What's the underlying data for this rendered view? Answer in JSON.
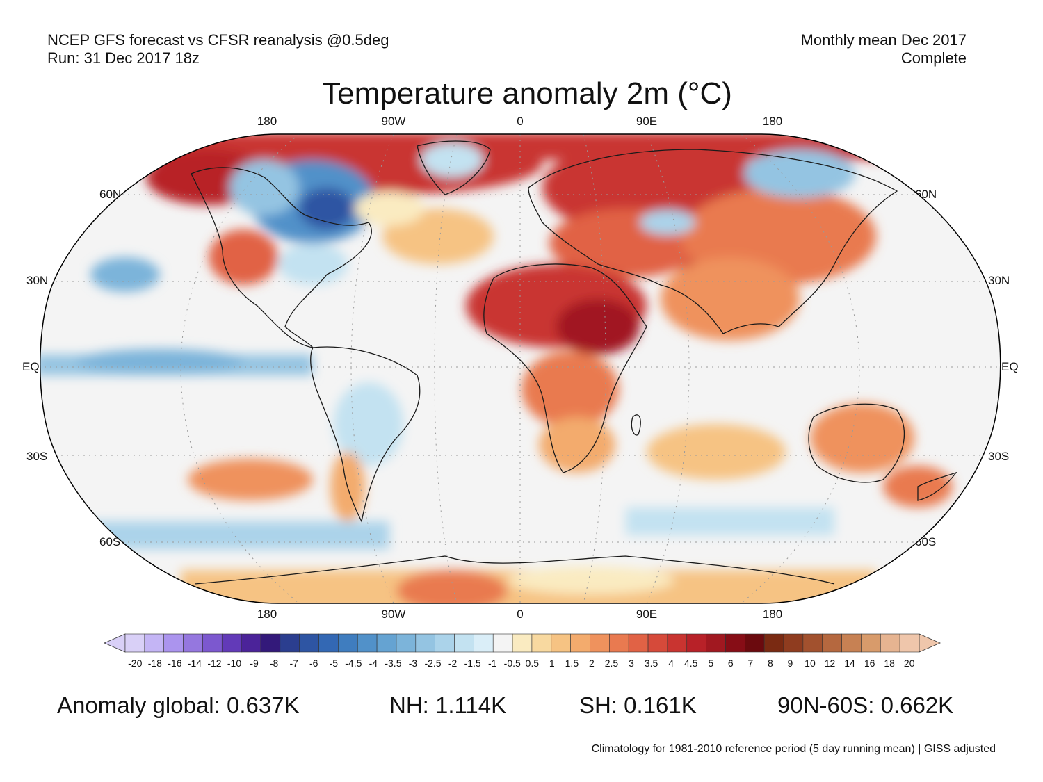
{
  "header": {
    "left_line1": "NCEP GFS forecast vs CFSR reanalysis @0.5deg",
    "left_line2": "Run: 31 Dec 2017 18z",
    "right_line1": "Monthly mean Dec 2017",
    "right_line2": "Complete"
  },
  "title": "Temperature anomaly 2m (°C)",
  "map": {
    "projection": "Robinson",
    "lon_labels": [
      "180",
      "90W",
      "0",
      "90E",
      "180"
    ],
    "lat_labels": [
      "60N",
      "30N",
      "EQ",
      "30S",
      "60S"
    ],
    "colors": {
      "background": "#f4f4f4",
      "warm_light": "#f9d9a6",
      "warm": "#f0a068",
      "hot": "#d6452d",
      "very_hot": "#b31a1a",
      "cold_light": "#cfe6f3",
      "cold": "#8fc0e0",
      "very_cold": "#3a78b8"
    }
  },
  "colorbar": {
    "ticks": [
      "-20",
      "-18",
      "-16",
      "-14",
      "-12",
      "-10",
      "-9",
      "-8",
      "-7",
      "-6",
      "-5",
      "-4.5",
      "-4",
      "-3.5",
      "-3",
      "-2.5",
      "-2",
      "-1.5",
      "-1",
      "-0.5",
      "0.5",
      "1",
      "1.5",
      "2",
      "2.5",
      "3",
      "3.5",
      "4",
      "4.5",
      "5",
      "6",
      "7",
      "8",
      "9",
      "10",
      "12",
      "14",
      "16",
      "18",
      "20"
    ],
    "colors": [
      "#d9d0f7",
      "#c4b5f5",
      "#ab94ee",
      "#9577df",
      "#7c58cf",
      "#623ab8",
      "#4b2399",
      "#33197a",
      "#2b3e8f",
      "#2e55a3",
      "#3368b4",
      "#3f7dbf",
      "#5191c9",
      "#65a3d2",
      "#7cb4da",
      "#94c4e2",
      "#abd3ea",
      "#c3e2f1",
      "#daeef8",
      "#f4f4f4",
      "#faebc1",
      "#f8d9a0",
      "#f6c383",
      "#f3ab6d",
      "#ef925d",
      "#e97a50",
      "#e16245",
      "#d64a3a",
      "#c93430",
      "#b82128",
      "#a11820",
      "#870d16",
      "#6b0a0e",
      "#7a2a12",
      "#8f3c1f",
      "#a2512e",
      "#b5683f",
      "#c78153",
      "#d89b6b",
      "#e6b491",
      "#efc6ab"
    ]
  },
  "stats": {
    "global": "Anomaly global: 0.637K",
    "nh": "NH: 1.114K",
    "sh": "SH: 0.161K",
    "band": "90N-60S: 0.662K"
  },
  "footer": "Climatology for 1981-2010 reference period (5 day running mean) | GISS adjusted"
}
